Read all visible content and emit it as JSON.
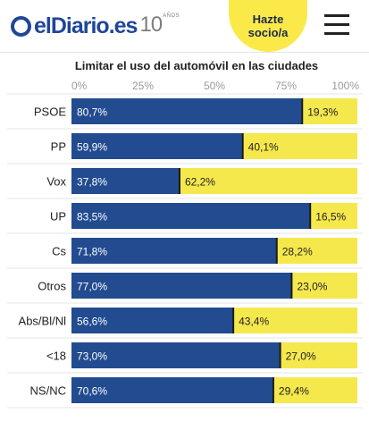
{
  "header": {
    "logo_text": "elDiario.es",
    "logo_years": "10",
    "logo_years_label": "AÑOS",
    "cta_line1": "Hazte",
    "cta_line2": "socio/a"
  },
  "colors": {
    "brand": "#1f4798",
    "series_a": "#224b90",
    "series_b": "#f5e84d",
    "cta_bg": "#fbe94a"
  },
  "chart_data": {
    "type": "bar",
    "orientation": "horizontal",
    "stacked": true,
    "title": "Limitar el uso del automóvil en las ciudades",
    "categories": [
      "PSOE",
      "PP",
      "Vox",
      "UP",
      "Cs",
      "Otros",
      "Abs/Bl/Nl",
      "<18",
      "NS/NC"
    ],
    "series": [
      {
        "values": [
          80.7,
          59.9,
          37.8,
          83.5,
          71.8,
          77.0,
          56.6,
          73.0,
          70.6
        ]
      },
      {
        "values": [
          19.3,
          40.1,
          62.2,
          16.5,
          28.2,
          23.0,
          43.4,
          27.0,
          29.4
        ]
      }
    ],
    "value_labels": [
      [
        "80,7%",
        "59,9%",
        "37,8%",
        "83,5%",
        "71,8%",
        "77,0%",
        "56,6%",
        "73,0%",
        "70,6%"
      ],
      [
        "19,3%",
        "40,1%",
        "62,2%",
        "16,5%",
        "28,2%",
        "23,0%",
        "43,4%",
        "27,0%",
        "29,4%"
      ]
    ],
    "xlim": [
      0,
      100
    ],
    "x_ticks": [
      0,
      25,
      50,
      75,
      100
    ],
    "x_tick_labels": [
      "0%",
      "25%",
      "50%",
      "75%",
      "100%"
    ],
    "x_axis_position": "top",
    "grid": false,
    "legend": "none"
  }
}
